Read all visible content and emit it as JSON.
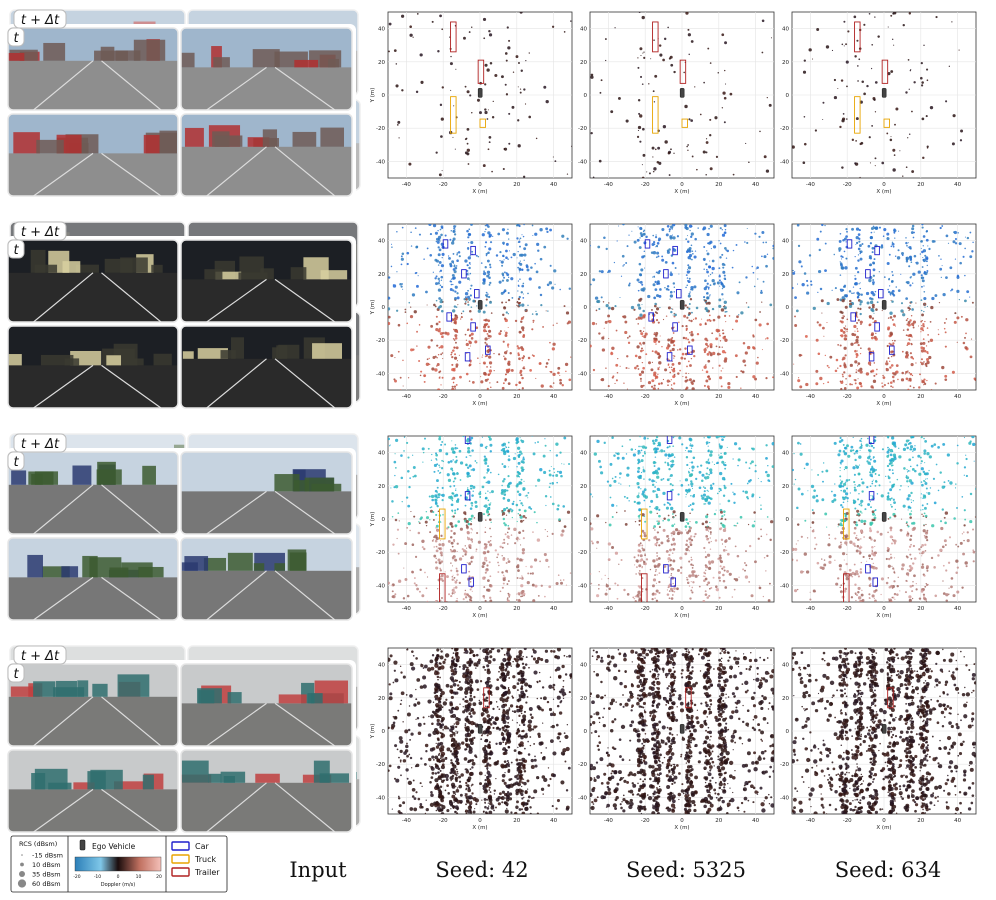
{
  "rows": [
    {
      "id": "depot-trucks",
      "time_back": "t + Δt",
      "time_front": "t",
      "sky": "#9fb6cc",
      "ground": "#8e8e8e",
      "mid": "#6e5a55",
      "accent": "#b03030",
      "density": 120,
      "doppler_mode": "dark",
      "boxes": "truck"
    },
    {
      "id": "night-road",
      "time_back": "t + Δt",
      "time_front": "t",
      "sky": "#1c1f24",
      "ground": "#2a2a2a",
      "mid": "#3a3a30",
      "accent": "#d8d0a0",
      "density": 700,
      "doppler_mode": "split",
      "boxes": "car"
    },
    {
      "id": "highway",
      "time_back": "t + Δt",
      "time_front": "t",
      "sky": "#c6d3e0",
      "ground": "#777777",
      "mid": "#3c5a30",
      "accent": "#2a3a70",
      "density": 800,
      "doppler_mode": "split-light",
      "boxes": "highway"
    },
    {
      "id": "container-yard",
      "time_back": "t + Δt",
      "time_front": "t",
      "sky": "#c8cacb",
      "ground": "#7a7a78",
      "mid": "#2f6f6f",
      "accent": "#c04040",
      "density": 1400,
      "doppler_mode": "dense",
      "boxes": "trailer"
    }
  ],
  "axes": {
    "ylabel": "Y (m)",
    "xlabel": "X (m)",
    "xticks": [
      -40,
      -20,
      0,
      20,
      40
    ],
    "yticks": [
      40,
      20,
      0,
      -20,
      -40
    ],
    "xlim": [
      -50,
      50
    ],
    "ylim": [
      -50,
      50
    ]
  },
  "columns": [
    "Input",
    "Seed: 42",
    "Seed: 5325",
    "Seed: 634"
  ],
  "legend": {
    "rcs_title": "RCS (dBsm)",
    "rcs_items": [
      "-15 dBsm",
      "10 dBsm",
      "35 dBsm",
      "60 dBsm"
    ],
    "ego_label": "Ego Vehicle",
    "doppler_label": "Doppler (m/s)",
    "doppler_ticks": [
      "-20",
      "-10",
      "0",
      "10",
      "20"
    ],
    "classes": [
      {
        "name": "Car",
        "color": "#1f1fcc"
      },
      {
        "name": "Truck",
        "color": "#e8a400"
      },
      {
        "name": "Trailer",
        "color": "#b02020"
      }
    ]
  }
}
